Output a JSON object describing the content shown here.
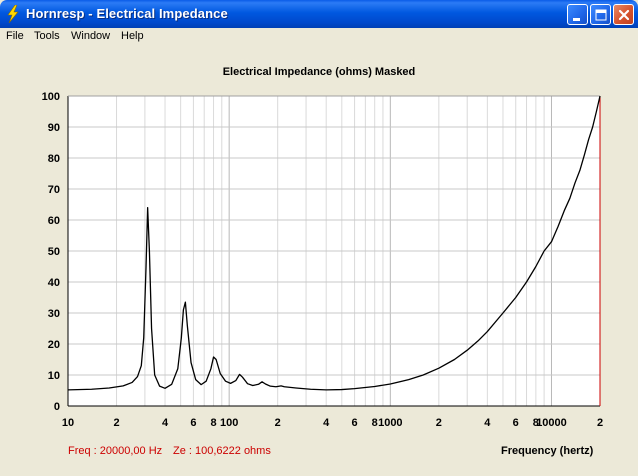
{
  "window": {
    "title": "Hornresp - Electrical Impedance"
  },
  "menu": [
    "File",
    "Tools",
    "Window",
    "Help"
  ],
  "chart_title": "Electrical Impedance (ohms)   Masked",
  "status": {
    "freq": "Freq : 20000,00 Hz",
    "ze": "Ze : 100,6222 ohms"
  },
  "chart_data": {
    "type": "line",
    "title": "Electrical Impedance (ohms)   Masked",
    "xlabel": "Frequency (hertz)",
    "ylabel": "",
    "xscale": "log",
    "xlim": [
      10,
      20000
    ],
    "ylim": [
      0,
      100
    ],
    "grid": true,
    "y_ticks": [
      "0",
      "10",
      "20",
      "30",
      "40",
      "50",
      "60",
      "70",
      "80",
      "90",
      "100"
    ],
    "x_ticks": [
      {
        "v": 10,
        "label": "10"
      },
      {
        "v": 20,
        "label": "2"
      },
      {
        "v": 40,
        "label": "4"
      },
      {
        "v": 60,
        "label": "6"
      },
      {
        "v": 80,
        "label": "8"
      },
      {
        "v": 100,
        "label": "100"
      },
      {
        "v": 200,
        "label": "2"
      },
      {
        "v": 400,
        "label": "4"
      },
      {
        "v": 600,
        "label": "6"
      },
      {
        "v": 800,
        "label": "8"
      },
      {
        "v": 1000,
        "label": "1000"
      },
      {
        "v": 2000,
        "label": "2"
      },
      {
        "v": 4000,
        "label": "4"
      },
      {
        "v": 6000,
        "label": "6"
      },
      {
        "v": 8000,
        "label": "8"
      },
      {
        "v": 10000,
        "label": "10000"
      },
      {
        "v": 20000,
        "label": "2"
      }
    ],
    "series": [
      {
        "color": "#000000",
        "points": [
          [
            10,
            5.2
          ],
          [
            14,
            5.4
          ],
          [
            18,
            5.8
          ],
          [
            22,
            6.5
          ],
          [
            25,
            7.6
          ],
          [
            27,
            9.5
          ],
          [
            28.5,
            13
          ],
          [
            29.5,
            22
          ],
          [
            30.5,
            45
          ],
          [
            31.2,
            64
          ],
          [
            32,
            50
          ],
          [
            33,
            25
          ],
          [
            34.5,
            10
          ],
          [
            37,
            6.4
          ],
          [
            40,
            5.7
          ],
          [
            44,
            7
          ],
          [
            48,
            12
          ],
          [
            50.5,
            22
          ],
          [
            52,
            31
          ],
          [
            53.5,
            33.5
          ],
          [
            55,
            26
          ],
          [
            58,
            14
          ],
          [
            62,
            8.5
          ],
          [
            67,
            6.9
          ],
          [
            72,
            8
          ],
          [
            77,
            12
          ],
          [
            80,
            15.8
          ],
          [
            83,
            15
          ],
          [
            88,
            10.5
          ],
          [
            95,
            8
          ],
          [
            102,
            7.3
          ],
          [
            110,
            8.2
          ],
          [
            116,
            10.2
          ],
          [
            121,
            9.3
          ],
          [
            130,
            7.2
          ],
          [
            140,
            6.6
          ],
          [
            152,
            7
          ],
          [
            160,
            7.8
          ],
          [
            168,
            7.1
          ],
          [
            180,
            6.4
          ],
          [
            195,
            6.2
          ],
          [
            210,
            6.5
          ],
          [
            220,
            6.2
          ],
          [
            260,
            5.8
          ],
          [
            320,
            5.4
          ],
          [
            400,
            5.2
          ],
          [
            500,
            5.3
          ],
          [
            600,
            5.6
          ],
          [
            800,
            6.3
          ],
          [
            1000,
            7.1
          ],
          [
            1300,
            8.5
          ],
          [
            1600,
            10
          ],
          [
            2000,
            12.2
          ],
          [
            2500,
            15
          ],
          [
            3000,
            18
          ],
          [
            3500,
            21
          ],
          [
            4000,
            24
          ],
          [
            5000,
            30
          ],
          [
            6000,
            35
          ],
          [
            7000,
            40
          ],
          [
            8000,
            45
          ],
          [
            9000,
            50
          ],
          [
            10000,
            53
          ],
          [
            11000,
            58
          ],
          [
            12000,
            63
          ],
          [
            13000,
            67
          ],
          [
            14000,
            72
          ],
          [
            15000,
            76
          ],
          [
            16000,
            81
          ],
          [
            17000,
            86
          ],
          [
            18000,
            90
          ],
          [
            19000,
            95
          ],
          [
            20000,
            100
          ]
        ]
      }
    ]
  }
}
